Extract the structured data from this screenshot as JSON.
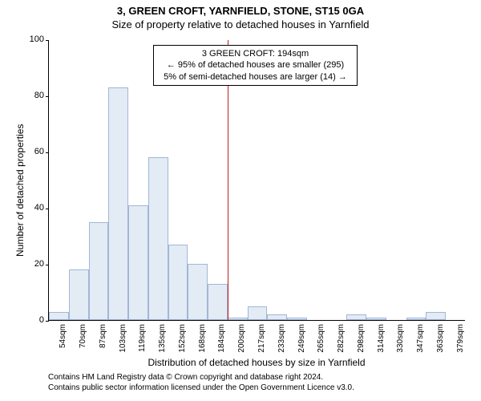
{
  "title_line1": "3, GREEN CROFT, YARNFIELD, STONE, ST15 0GA",
  "title_line2": "Size of property relative to detached houses in Yarnfield",
  "ylabel": "Number of detached properties",
  "xlabel": "Distribution of detached houses by size in Yarnfield",
  "chart": {
    "type": "histogram",
    "background_color": "#ffffff",
    "bar_fill": "#e3ebf5",
    "bar_stroke": "#a2b7d6",
    "ylim": [
      0,
      100
    ],
    "ytick_step": 20,
    "x_categories": [
      "54sqm",
      "70sqm",
      "87sqm",
      "103sqm",
      "119sqm",
      "135sqm",
      "152sqm",
      "168sqm",
      "184sqm",
      "200sqm",
      "217sqm",
      "233sqm",
      "249sqm",
      "265sqm",
      "282sqm",
      "298sqm",
      "314sqm",
      "330sqm",
      "347sqm",
      "363sqm",
      "379sqm"
    ],
    "bar_values": [
      3,
      18,
      35,
      83,
      41,
      58,
      27,
      20,
      13,
      1,
      5,
      2,
      1,
      0,
      0,
      2,
      1,
      0,
      1,
      3,
      0
    ],
    "reference_line_color": "#c02020",
    "reference_line_position_category_index": 9
  },
  "annotation": {
    "line1": "3 GREEN CROFT: 194sqm",
    "line2": "← 95% of detached houses are smaller (295)",
    "line3": "5% of semi-detached houses are larger (14) →"
  },
  "footer_line1": "Contains HM Land Registry data © Crown copyright and database right 2024.",
  "footer_line2": "Contains public sector information licensed under the Open Government Licence v3.0."
}
